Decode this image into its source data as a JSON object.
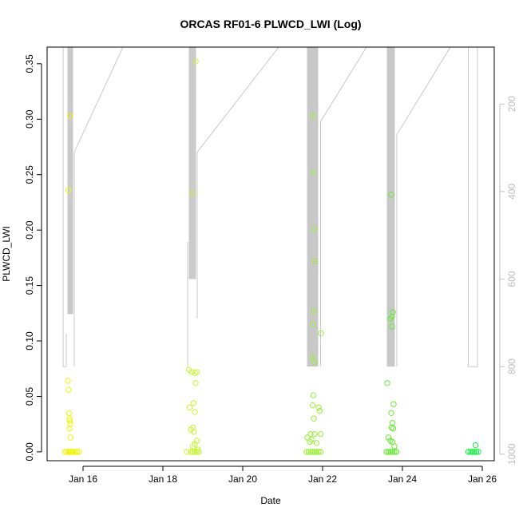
{
  "chart_data": {
    "type": "scatter",
    "title": "ORCAS RF01-6 PLWCD_LWI (Log)",
    "xlabel": "Date",
    "ylabel": "PLWCD_LWI",
    "x_ticks": [
      "Jan 16",
      "Jan 18",
      "Jan 20",
      "Jan 22",
      "Jan 24",
      "Jan 26"
    ],
    "x_tick_days": [
      16,
      18,
      20,
      22,
      24,
      26
    ],
    "xlim": [
      15.1,
      26.3
    ],
    "ylim": [
      -0.008,
      0.365
    ],
    "y_ticks": [
      0.0,
      0.05,
      0.1,
      0.15,
      0.2,
      0.25,
      0.3,
      0.35
    ],
    "y_tick_labels": [
      "0.00",
      "0.05",
      "0.10",
      "0.15",
      "0.20",
      "0.25",
      "0.30",
      "0.35"
    ],
    "y2_ticks": [
      200,
      400,
      600,
      800,
      1000
    ],
    "y2_lim": [
      1015,
      70
    ],
    "grid": false,
    "legend": "none",
    "colors": {
      "flight1": "#f2f500",
      "flight2": "#c8f530",
      "flight3": "#96f030",
      "flight4": "#64ec30",
      "flight5": "#10f040",
      "pressure_trace": "#c8c8c8"
    },
    "series": [
      {
        "color_key": "flight1",
        "x": [
          15.55,
          15.6,
          15.65,
          15.68,
          15.7,
          15.72,
          15.75,
          15.8,
          15.85,
          15.9,
          15.62,
          15.64,
          15.65,
          15.66,
          15.67,
          15.68,
          15.66,
          15.69,
          15.67,
          15.63
        ],
        "y": [
          0,
          0,
          0,
          0,
          0,
          0,
          0,
          0,
          0,
          0,
          0.064,
          0.056,
          0.035,
          0.03,
          0.028,
          0.025,
          0.021,
          0.013,
          0.303,
          0.236
        ]
      },
      {
        "color_key": "flight2",
        "x": [
          18.6,
          18.7,
          18.75,
          18.8,
          18.85,
          18.9,
          18.65,
          18.72,
          18.8,
          18.85,
          18.67,
          18.77,
          18.82,
          18.8,
          18.7,
          18.75,
          18.78,
          18.85,
          18.8,
          18.75,
          18.88,
          18.74,
          18.82
        ],
        "y": [
          0,
          0,
          0,
          0,
          0,
          0,
          0.074,
          0.072,
          0.071,
          0.072,
          0.04,
          0.044,
          0.062,
          0.036,
          0.02,
          0.022,
          0.018,
          0.01,
          0.007,
          0.005,
          0.002,
          0.233,
          0.352
        ]
      },
      {
        "color_key": "flight3",
        "x": [
          21.6,
          21.65,
          21.7,
          21.75,
          21.8,
          21.85,
          21.9,
          21.95,
          21.75,
          21.77,
          21.79,
          21.8,
          21.78,
          21.76,
          21.74,
          21.79,
          21.77,
          21.75,
          21.78,
          21.96,
          21.93,
          21.8,
          21.7,
          21.72,
          21.68,
          21.9,
          21.95,
          21.62,
          21.85
        ],
        "y": [
          0,
          0,
          0,
          0,
          0,
          0,
          0,
          0,
          0.303,
          0.252,
          0.201,
          0.172,
          0.127,
          0.115,
          0.086,
          0.081,
          0.051,
          0.042,
          0.03,
          0.107,
          0.037,
          0.016,
          0.016,
          0.011,
          0.009,
          0.04,
          0.016,
          0.013,
          0.008
        ]
      },
      {
        "color_key": "flight4",
        "x": [
          23.6,
          23.65,
          23.7,
          23.75,
          23.8,
          23.85,
          23.62,
          23.72,
          23.76,
          23.74,
          23.7,
          23.74,
          23.78,
          23.72,
          23.75,
          23.73,
          23.77,
          23.7,
          23.75,
          23.8,
          23.65
        ],
        "y": [
          0,
          0,
          0,
          0,
          0,
          0,
          0.062,
          0.232,
          0.126,
          0.122,
          0.12,
          0.113,
          0.043,
          0.035,
          0.026,
          0.022,
          0.021,
          0.01,
          0.009,
          0.005,
          0.013
        ]
      },
      {
        "color_key": "flight5",
        "x": [
          25.65,
          25.7,
          25.75,
          25.8,
          25.85,
          25.9,
          25.83
        ],
        "y": [
          0,
          0,
          0,
          0,
          0,
          0,
          0.006
        ]
      }
    ]
  }
}
